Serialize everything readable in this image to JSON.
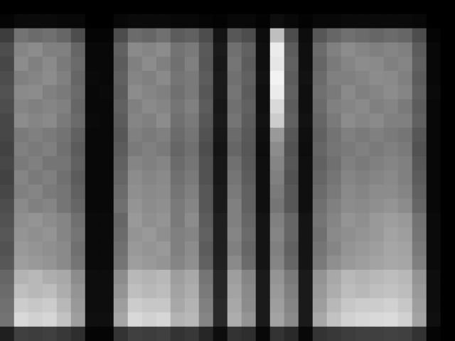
{
  "chart_data": {
    "type": "heatmap",
    "tick_labels": false,
    "color": "gray",
    "value_range": [
      0,
      100
    ],
    "values": [
      [
        0,
        0,
        0,
        0,
        0,
        0,
        0,
        0,
        0,
        0,
        0,
        0,
        0,
        0,
        0,
        0,
        0,
        0,
        0,
        0,
        0,
        0,
        0,
        0,
        0,
        0,
        0,
        0,
        0,
        0,
        0,
        0
      ],
      [
        2,
        4,
        4,
        4,
        3,
        3,
        0,
        0,
        3,
        4,
        4,
        4,
        3,
        3,
        2,
        1,
        3,
        3,
        1,
        5,
        3,
        1,
        3,
        3,
        4,
        4,
        4,
        4,
        4,
        3,
        0,
        0
      ],
      [
        24,
        45,
        42,
        44,
        40,
        30,
        2,
        2,
        30,
        42,
        40,
        44,
        36,
        38,
        30,
        8,
        34,
        30,
        5,
        75,
        30,
        5,
        34,
        40,
        44,
        42,
        40,
        42,
        40,
        30,
        2,
        0
      ],
      [
        30,
        52,
        55,
        50,
        50,
        40,
        3,
        3,
        38,
        54,
        52,
        55,
        45,
        48,
        35,
        10,
        44,
        38,
        6,
        92,
        36,
        6,
        42,
        50,
        55,
        52,
        50,
        52,
        50,
        36,
        3,
        0
      ],
      [
        28,
        55,
        50,
        54,
        48,
        42,
        3,
        3,
        36,
        50,
        55,
        50,
        44,
        50,
        34,
        9,
        46,
        36,
        6,
        90,
        38,
        6,
        40,
        48,
        52,
        55,
        54,
        50,
        52,
        38,
        3,
        0
      ],
      [
        30,
        50,
        52,
        55,
        50,
        40,
        4,
        3,
        38,
        52,
        50,
        54,
        46,
        48,
        36,
        10,
        44,
        38,
        7,
        95,
        36,
        7,
        42,
        50,
        50,
        52,
        55,
        54,
        50,
        36,
        3,
        0
      ],
      [
        32,
        54,
        55,
        50,
        48,
        42,
        3,
        4,
        36,
        55,
        52,
        50,
        44,
        48,
        34,
        10,
        46,
        36,
        6,
        92,
        38,
        6,
        44,
        48,
        54,
        50,
        52,
        55,
        52,
        38,
        4,
        0
      ],
      [
        30,
        52,
        50,
        52,
        50,
        40,
        3,
        3,
        38,
        50,
        54,
        52,
        46,
        50,
        36,
        9,
        44,
        38,
        6,
        85,
        36,
        6,
        42,
        50,
        52,
        54,
        50,
        52,
        48,
        36,
        3,
        0
      ],
      [
        28,
        55,
        52,
        54,
        48,
        42,
        4,
        3,
        36,
        52,
        50,
        55,
        44,
        48,
        34,
        10,
        46,
        36,
        7,
        80,
        38,
        7,
        40,
        48,
        55,
        52,
        54,
        50,
        50,
        38,
        3,
        0
      ],
      [
        28,
        48,
        50,
        48,
        45,
        38,
        3,
        3,
        34,
        50,
        48,
        50,
        42,
        46,
        32,
        9,
        42,
        35,
        6,
        60,
        34,
        6,
        38,
        45,
        50,
        48,
        50,
        48,
        46,
        34,
        3,
        0
      ],
      [
        26,
        50,
        48,
        50,
        44,
        36,
        3,
        3,
        36,
        48,
        50,
        48,
        40,
        44,
        30,
        8,
        40,
        34,
        5,
        55,
        32,
        5,
        40,
        46,
        48,
        50,
        48,
        50,
        48,
        32,
        3,
        0
      ],
      [
        28,
        48,
        50,
        46,
        46,
        38,
        3,
        3,
        38,
        52,
        50,
        52,
        42,
        46,
        32,
        9,
        44,
        35,
        6,
        52,
        34,
        6,
        38,
        44,
        50,
        48,
        50,
        52,
        50,
        34,
        3,
        0
      ],
      [
        26,
        52,
        48,
        50,
        44,
        36,
        3,
        3,
        40,
        55,
        52,
        54,
        44,
        48,
        32,
        9,
        46,
        36,
        6,
        50,
        32,
        6,
        40,
        46,
        52,
        50,
        52,
        54,
        50,
        36,
        3,
        0
      ],
      [
        28,
        50,
        52,
        48,
        46,
        38,
        3,
        3,
        42,
        56,
        54,
        55,
        46,
        50,
        34,
        10,
        48,
        38,
        6,
        48,
        34,
        6,
        42,
        48,
        54,
        52,
        55,
        55,
        52,
        38,
        3,
        0
      ],
      [
        30,
        54,
        50,
        52,
        46,
        40,
        3,
        3,
        44,
        58,
        55,
        56,
        48,
        52,
        34,
        10,
        50,
        38,
        6,
        46,
        34,
        6,
        44,
        50,
        55,
        54,
        56,
        58,
        55,
        40,
        3,
        0
      ],
      [
        32,
        56,
        58,
        55,
        52,
        44,
        4,
        4,
        40,
        60,
        56,
        58,
        48,
        55,
        36,
        12,
        50,
        40,
        8,
        50,
        40,
        8,
        46,
        52,
        58,
        56,
        60,
        62,
        60,
        45,
        4,
        0
      ],
      [
        34,
        58,
        56,
        58,
        52,
        46,
        4,
        4,
        42,
        58,
        60,
        56,
        50,
        52,
        38,
        12,
        52,
        42,
        8,
        52,
        40,
        8,
        44,
        54,
        56,
        58,
        60,
        64,
        62,
        46,
        4,
        0
      ],
      [
        32,
        60,
        58,
        56,
        54,
        44,
        4,
        4,
        44,
        60,
        58,
        60,
        50,
        55,
        36,
        12,
        50,
        40,
        8,
        50,
        38,
        8,
        46,
        52,
        58,
        60,
        62,
        65,
        64,
        48,
        4,
        0
      ],
      [
        34,
        62,
        60,
        58,
        54,
        46,
        4,
        4,
        46,
        62,
        60,
        58,
        52,
        56,
        38,
        13,
        54,
        42,
        8,
        52,
        40,
        8,
        48,
        56,
        60,
        62,
        64,
        66,
        65,
        50,
        4,
        0
      ],
      [
        40,
        70,
        72,
        68,
        66,
        55,
        5,
        5,
        55,
        72,
        70,
        72,
        62,
        66,
        46,
        15,
        62,
        52,
        10,
        58,
        48,
        10,
        58,
        66,
        72,
        70,
        72,
        74,
        72,
        58,
        5,
        0
      ],
      [
        42,
        75,
        72,
        74,
        68,
        58,
        5,
        5,
        58,
        75,
        72,
        74,
        64,
        68,
        48,
        15,
        64,
        54,
        10,
        60,
        50,
        10,
        60,
        68,
        74,
        72,
        75,
        76,
        74,
        60,
        5,
        0
      ],
      [
        44,
        80,
        78,
        80,
        72,
        60,
        5,
        5,
        62,
        80,
        78,
        78,
        66,
        70,
        50,
        16,
        66,
        55,
        10,
        62,
        52,
        10,
        62,
        72,
        78,
        80,
        80,
        82,
        78,
        62,
        5,
        0
      ],
      [
        45,
        85,
        82,
        84,
        76,
        62,
        6,
        6,
        65,
        85,
        82,
        84,
        70,
        72,
        52,
        16,
        68,
        58,
        10,
        64,
        54,
        10,
        66,
        76,
        82,
        84,
        85,
        86,
        82,
        64,
        6,
        0
      ],
      [
        12,
        25,
        24,
        25,
        22,
        18,
        2,
        2,
        20,
        25,
        24,
        25,
        20,
        22,
        15,
        5,
        20,
        18,
        3,
        20,
        16,
        3,
        20,
        22,
        24,
        25,
        25,
        26,
        25,
        20,
        2,
        0
      ]
    ]
  }
}
